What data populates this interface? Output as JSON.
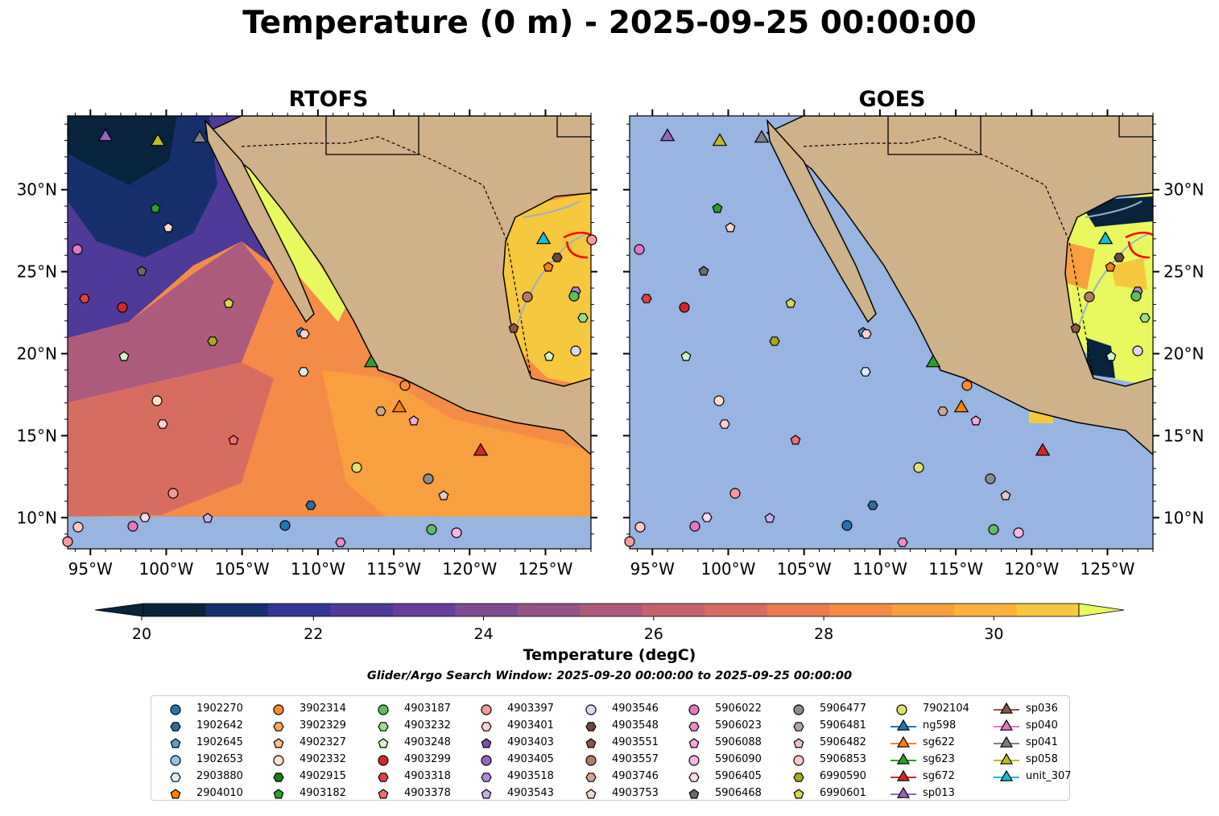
{
  "title": "Temperature (0 m) - 2025-09-25 00:00:00",
  "panels": [
    {
      "title": "RTOFS"
    },
    {
      "title": "GOES"
    }
  ],
  "axes": {
    "lat_ticks": [
      "10°N",
      "15°N",
      "20°N",
      "25°N",
      "30°N"
    ],
    "lon_ticks": [
      "125°W",
      "120°W",
      "115°W",
      "110°W",
      "105°W",
      "100°W",
      "95°W"
    ]
  },
  "colorbar": {
    "label": "Temperature (degC)",
    "ticks": [
      "20",
      "22",
      "24",
      "26",
      "28",
      "30"
    ],
    "colors": [
      "#08243d",
      "#16306e",
      "#343592",
      "#4f3a9a",
      "#673f98",
      "#7f4a92",
      "#965388",
      "#ad5b7c",
      "#c3636e",
      "#d76d61",
      "#e97b52",
      "#f48c48",
      "#f89f40",
      "#f9b33c",
      "#f5c83d"
    ],
    "extend_max_color": "#e8f85e"
  },
  "search_window": "Glider/Argo Search Window: 2025-09-20 00:00:00 to 2025-09-25 00:00:00",
  "colors": {
    "land": "#cfb28a",
    "ocean_mask": "#97b5e0",
    "contour": "#ff0000"
  },
  "legend": [
    {
      "label": "1902270",
      "marker": "circle",
      "color": "#1f77b4"
    },
    {
      "label": "1902642",
      "marker": "hexagon",
      "color": "#2b6ea3"
    },
    {
      "label": "1902645",
      "marker": "pentagon",
      "color": "#5b9bd5"
    },
    {
      "label": "1902653",
      "marker": "circle",
      "color": "#8ec1ea"
    },
    {
      "label": "2903880",
      "marker": "hexagon",
      "color": "#d6ecfb"
    },
    {
      "label": "2904010",
      "marker": "pentagon",
      "color": "#ff7f0e"
    },
    {
      "label": "3902314",
      "marker": "circle",
      "color": "#ff8c2a"
    },
    {
      "label": "3902329",
      "marker": "hexagon",
      "color": "#ffa45c"
    },
    {
      "label": "4902327",
      "marker": "pentagon",
      "color": "#ffc08a"
    },
    {
      "label": "4902332",
      "marker": "circle",
      "color": "#ffe3c4"
    },
    {
      "label": "4902915",
      "marker": "hexagon",
      "color": "#1a7a1a"
    },
    {
      "label": "4903182",
      "marker": "pentagon",
      "color": "#2ca02c"
    },
    {
      "label": "4903187",
      "marker": "circle",
      "color": "#5cc05c"
    },
    {
      "label": "4903232",
      "marker": "hexagon",
      "color": "#98df8a"
    },
    {
      "label": "4903248",
      "marker": "pentagon",
      "color": "#d2f5c8"
    },
    {
      "label": "4903299",
      "marker": "circle",
      "color": "#d62728"
    },
    {
      "label": "4903318",
      "marker": "hexagon",
      "color": "#e04040"
    },
    {
      "label": "4903378",
      "marker": "pentagon",
      "color": "#f07070"
    },
    {
      "label": "4903397",
      "marker": "circle",
      "color": "#f59a9a"
    },
    {
      "label": "4903401",
      "marker": "hexagon",
      "color": "#fcd0d0"
    },
    {
      "label": "4903403",
      "marker": "pentagon",
      "color": "#7b4fb0"
    },
    {
      "label": "4903405",
      "marker": "circle",
      "color": "#9467bd"
    },
    {
      "label": "4903518",
      "marker": "hexagon",
      "color": "#b08ad4"
    },
    {
      "label": "4903543",
      "marker": "pentagon",
      "color": "#c5b0e8"
    },
    {
      "label": "4903546",
      "marker": "circle",
      "color": "#e2d4f6"
    },
    {
      "label": "4903548",
      "marker": "hexagon",
      "color": "#6e4a3a"
    },
    {
      "label": "4903551",
      "marker": "pentagon",
      "color": "#8c564b"
    },
    {
      "label": "4903557",
      "marker": "circle",
      "color": "#b07a6e"
    },
    {
      "label": "4903746",
      "marker": "hexagon",
      "color": "#d2a592"
    },
    {
      "label": "4903753",
      "marker": "pentagon",
      "color": "#f4d8cc"
    },
    {
      "label": "5906022",
      "marker": "circle",
      "color": "#e377c2"
    },
    {
      "label": "5906023",
      "marker": "hexagon",
      "color": "#e88ccb"
    },
    {
      "label": "5906088",
      "marker": "pentagon",
      "color": "#f2a8d8"
    },
    {
      "label": "5906090",
      "marker": "circle",
      "color": "#f7b6e4"
    },
    {
      "label": "5906405",
      "marker": "hexagon",
      "color": "#fcdaf0"
    },
    {
      "label": "5906468",
      "marker": "pentagon",
      "color": "#6b6b6b"
    },
    {
      "label": "5906477",
      "marker": "circle",
      "color": "#8c8c8c"
    },
    {
      "label": "5906481",
      "marker": "hexagon",
      "color": "#b5a6a2"
    },
    {
      "label": "5906482",
      "marker": "pentagon",
      "color": "#e6c6c6"
    },
    {
      "label": "5906853",
      "marker": "circle",
      "color": "#ffc8c8"
    },
    {
      "label": "6990590",
      "marker": "hexagon",
      "color": "#a8a820"
    },
    {
      "label": "6990601",
      "marker": "pentagon",
      "color": "#d8d850"
    },
    {
      "label": "7902104",
      "marker": "circle",
      "color": "#e0e070"
    },
    {
      "label": "ng598",
      "marker": "triangle",
      "color": "#1f77b4"
    },
    {
      "label": "sg622",
      "marker": "triangle",
      "color": "#ff7f0e"
    },
    {
      "label": "sg623",
      "marker": "triangle",
      "color": "#2ca02c"
    },
    {
      "label": "sg672",
      "marker": "triangle",
      "color": "#d62728"
    },
    {
      "label": "sp013",
      "marker": "triangle",
      "color": "#9467bd"
    },
    {
      "label": "sp036",
      "marker": "triangle",
      "color": "#8c564b"
    },
    {
      "label": "sp040",
      "marker": "triangle",
      "color": "#e377c2"
    },
    {
      "label": "sp041",
      "marker": "triangle",
      "color": "#7f7f7f"
    },
    {
      "label": "sp058",
      "marker": "triangle",
      "color": "#bcbd22"
    },
    {
      "label": "unit_307",
      "marker": "triangle",
      "color": "#17becf"
    }
  ]
}
